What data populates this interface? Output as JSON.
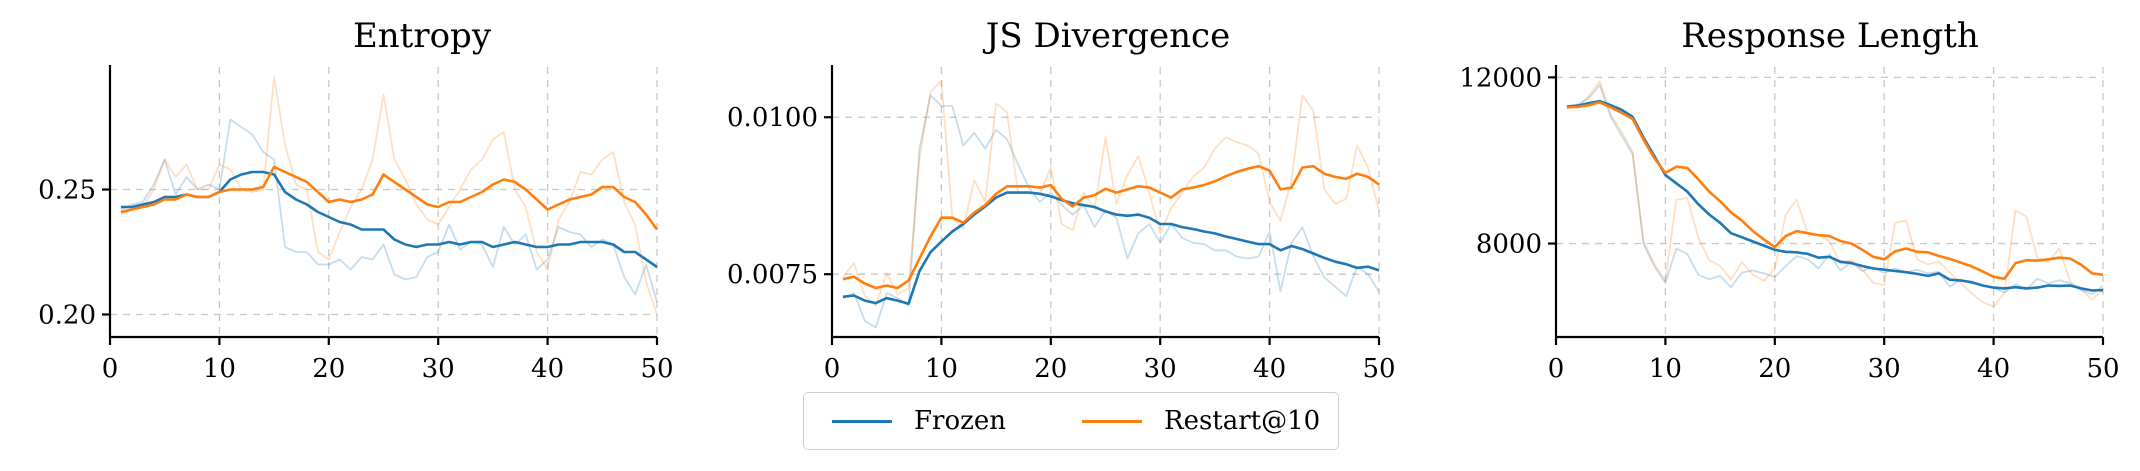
{
  "colors": {
    "frozen": "#1f77b4",
    "restart": "#ff7f0e"
  },
  "legend": [
    {
      "name": "Frozen",
      "color": "#1f77b4"
    },
    {
      "name": "Restart@10",
      "color": "#ff7f0e"
    }
  ],
  "chart_data": [
    {
      "type": "line",
      "title": "Entropy",
      "xlabel": "",
      "ylabel": "",
      "xlim": [
        0,
        50
      ],
      "ylim": [
        0.191,
        0.299
      ],
      "xticks": [
        0,
        10,
        20,
        30,
        40,
        50
      ],
      "yticks": [
        0.2,
        0.25
      ],
      "ytick_labels": [
        "0.20",
        "0.25"
      ],
      "grid": true,
      "x": [
        1,
        2,
        3,
        4,
        5,
        6,
        7,
        8,
        9,
        10,
        11,
        12,
        13,
        14,
        15,
        16,
        17,
        18,
        19,
        20,
        21,
        22,
        23,
        24,
        25,
        26,
        27,
        28,
        29,
        30,
        31,
        32,
        33,
        34,
        35,
        36,
        37,
        38,
        39,
        40,
        41,
        42,
        43,
        44,
        45,
        46,
        47,
        48,
        49,
        50
      ],
      "series": [
        {
          "name": "Frozen",
          "style": "smoothed",
          "color": "#1f77b4",
          "values": [
            0.243,
            0.243,
            0.244,
            0.245,
            0.247,
            0.247,
            0.248,
            0.247,
            0.247,
            0.249,
            0.254,
            0.256,
            0.257,
            0.257,
            0.256,
            0.249,
            0.246,
            0.244,
            0.241,
            0.239,
            0.237,
            0.236,
            0.234,
            0.234,
            0.234,
            0.23,
            0.228,
            0.227,
            0.228,
            0.228,
            0.229,
            0.228,
            0.229,
            0.229,
            0.227,
            0.228,
            0.229,
            0.228,
            0.227,
            0.227,
            0.228,
            0.228,
            0.229,
            0.229,
            0.229,
            0.228,
            0.225,
            0.225,
            0.222,
            0.219
          ]
        },
        {
          "name": "Restart@10",
          "style": "smoothed",
          "color": "#ff7f0e",
          "values": [
            0.241,
            0.242,
            0.243,
            0.244,
            0.246,
            0.246,
            0.248,
            0.247,
            0.247,
            0.249,
            0.25,
            0.25,
            0.25,
            0.251,
            0.259,
            0.257,
            0.255,
            0.253,
            0.249,
            0.245,
            0.246,
            0.245,
            0.246,
            0.248,
            0.256,
            0.253,
            0.25,
            0.247,
            0.244,
            0.243,
            0.245,
            0.245,
            0.247,
            0.249,
            0.252,
            0.254,
            0.253,
            0.25,
            0.246,
            0.242,
            0.244,
            0.246,
            0.247,
            0.248,
            0.251,
            0.251,
            0.247,
            0.245,
            0.24,
            0.234
          ]
        },
        {
          "name": "Frozen",
          "style": "raw",
          "color": "#1f77b4",
          "values": [
            0.242,
            0.244,
            0.245,
            0.252,
            0.262,
            0.248,
            0.255,
            0.25,
            0.252,
            0.25,
            0.278,
            0.275,
            0.272,
            0.265,
            0.262,
            0.227,
            0.225,
            0.225,
            0.22,
            0.22,
            0.222,
            0.218,
            0.223,
            0.222,
            0.228,
            0.216,
            0.214,
            0.215,
            0.223,
            0.225,
            0.236,
            0.226,
            0.229,
            0.228,
            0.219,
            0.235,
            0.228,
            0.232,
            0.218,
            0.222,
            0.235,
            0.233,
            0.232,
            0.227,
            0.23,
            0.228,
            0.215,
            0.208,
            0.22,
            0.205
          ]
        },
        {
          "name": "Restart@10",
          "style": "raw",
          "color": "#ff7f0e",
          "values": [
            0.24,
            0.242,
            0.243,
            0.25,
            0.262,
            0.255,
            0.26,
            0.25,
            0.25,
            0.26,
            0.258,
            0.25,
            0.249,
            0.25,
            0.295,
            0.268,
            0.252,
            0.25,
            0.225,
            0.222,
            0.233,
            0.243,
            0.25,
            0.262,
            0.288,
            0.262,
            0.254,
            0.244,
            0.238,
            0.236,
            0.243,
            0.25,
            0.258,
            0.262,
            0.27,
            0.273,
            0.25,
            0.243,
            0.225,
            0.218,
            0.238,
            0.245,
            0.257,
            0.256,
            0.262,
            0.265,
            0.245,
            0.236,
            0.213,
            0.2
          ]
        }
      ]
    },
    {
      "type": "line",
      "title": "JS Divergence",
      "xlabel": "",
      "ylabel": "",
      "xlim": [
        0,
        50
      ],
      "ylim": [
        0.0065,
        0.0108
      ],
      "xticks": [
        0,
        10,
        20,
        30,
        40,
        50
      ],
      "yticks": [
        0.0075,
        0.01
      ],
      "ytick_labels": [
        "0.0075",
        "0.0100"
      ],
      "grid": true,
      "x": [
        1,
        2,
        3,
        4,
        5,
        6,
        7,
        8,
        9,
        10,
        11,
        12,
        13,
        14,
        15,
        16,
        17,
        18,
        19,
        20,
        21,
        22,
        23,
        24,
        25,
        26,
        27,
        28,
        29,
        30,
        31,
        32,
        33,
        34,
        35,
        36,
        37,
        38,
        39,
        40,
        41,
        42,
        43,
        44,
        45,
        46,
        47,
        48,
        49,
        50
      ],
      "series": [
        {
          "name": "Frozen",
          "style": "smoothed",
          "color": "#1f77b4",
          "values": [
            0.00714,
            0.00716,
            0.00708,
            0.00704,
            0.00712,
            0.00708,
            0.00703,
            0.00755,
            0.00785,
            0.00802,
            0.00818,
            0.0083,
            0.00845,
            0.00858,
            0.00872,
            0.0088,
            0.0088,
            0.0088,
            0.00878,
            0.00874,
            0.00868,
            0.00863,
            0.0086,
            0.00857,
            0.0085,
            0.00845,
            0.00843,
            0.00845,
            0.0084,
            0.0083,
            0.0083,
            0.00825,
            0.00822,
            0.00818,
            0.00815,
            0.0081,
            0.00806,
            0.00802,
            0.00798,
            0.00798,
            0.00788,
            0.00795,
            0.0079,
            0.00783,
            0.00776,
            0.0077,
            0.00766,
            0.0076,
            0.00762,
            0.00756
          ]
        },
        {
          "name": "Restart@10",
          "style": "smoothed",
          "color": "#ff7f0e",
          "values": [
            0.00742,
            0.00746,
            0.00735,
            0.00728,
            0.00732,
            0.00728,
            0.0074,
            0.00775,
            0.0081,
            0.0084,
            0.0084,
            0.00832,
            0.00848,
            0.0086,
            0.00878,
            0.0089,
            0.0089,
            0.0089,
            0.00888,
            0.00892,
            0.0087,
            0.00858,
            0.00872,
            0.00876,
            0.00886,
            0.0088,
            0.00885,
            0.0089,
            0.00888,
            0.0088,
            0.00872,
            0.00885,
            0.00888,
            0.00892,
            0.00898,
            0.00906,
            0.00913,
            0.00918,
            0.00922,
            0.00915,
            0.00885,
            0.00888,
            0.0092,
            0.00922,
            0.0091,
            0.00905,
            0.00902,
            0.0091,
            0.00905,
            0.00893
          ]
        },
        {
          "name": "Frozen",
          "style": "raw",
          "color": "#1f77b4",
          "values": [
            0.00712,
            0.0072,
            0.00676,
            0.00665,
            0.0072,
            0.00712,
            0.007,
            0.0095,
            0.01035,
            0.01018,
            0.01018,
            0.00955,
            0.00975,
            0.0095,
            0.0098,
            0.00965,
            0.00925,
            0.00888,
            0.00865,
            0.0088,
            0.0086,
            0.00845,
            0.0086,
            0.00825,
            0.00852,
            0.0084,
            0.00775,
            0.00815,
            0.0083,
            0.008,
            0.0083,
            0.00808,
            0.008,
            0.00798,
            0.00788,
            0.00788,
            0.00778,
            0.00775,
            0.00778,
            0.00818,
            0.00723,
            0.008,
            0.00825,
            0.00778,
            0.00745,
            0.0073,
            0.00715,
            0.00762,
            0.0075,
            0.00722
          ]
        },
        {
          "name": "Restart@10",
          "style": "raw",
          "color": "#ff7f0e",
          "values": [
            0.00745,
            0.00768,
            0.00715,
            0.007,
            0.00752,
            0.00718,
            0.00728,
            0.00935,
            0.0104,
            0.01058,
            0.0084,
            0.00822,
            0.009,
            0.00865,
            0.01022,
            0.01008,
            0.0088,
            0.0088,
            0.00878,
            0.0092,
            0.0083,
            0.0082,
            0.0088,
            0.00855,
            0.00968,
            0.00862,
            0.00908,
            0.00938,
            0.0088,
            0.00815,
            0.00855,
            0.0088,
            0.00905,
            0.0092,
            0.0095,
            0.00968,
            0.0096,
            0.00955,
            0.00942,
            0.00865,
            0.00835,
            0.009,
            0.01035,
            0.0101,
            0.00885,
            0.00862,
            0.0087,
            0.00955,
            0.0092,
            0.0085
          ]
        }
      ]
    },
    {
      "type": "line",
      "title": "Response Length",
      "xlabel": "",
      "ylabel": "",
      "xlim": [
        0,
        50
      ],
      "ylim": [
        5750,
        12250
      ],
      "xticks": [
        0,
        10,
        20,
        30,
        40,
        50
      ],
      "yticks": [
        8000,
        12000
      ],
      "ytick_labels": [
        "8000",
        "12000"
      ],
      "grid": true,
      "x": [
        1,
        2,
        3,
        4,
        5,
        6,
        7,
        8,
        9,
        10,
        11,
        12,
        13,
        14,
        15,
        16,
        17,
        18,
        19,
        20,
        21,
        22,
        23,
        24,
        25,
        26,
        27,
        28,
        29,
        30,
        31,
        32,
        33,
        34,
        35,
        36,
        37,
        38,
        39,
        40,
        41,
        42,
        43,
        44,
        45,
        46,
        47,
        48,
        49,
        50
      ],
      "series": [
        {
          "name": "Frozen",
          "style": "smoothed",
          "color": "#1f77b4",
          "values": [
            11300,
            11320,
            11380,
            11430,
            11330,
            11220,
            11050,
            10550,
            10100,
            9650,
            9450,
            9250,
            8950,
            8700,
            8500,
            8250,
            8150,
            8050,
            7950,
            7850,
            7800,
            7790,
            7750,
            7660,
            7680,
            7560,
            7530,
            7460,
            7400,
            7370,
            7340,
            7310,
            7270,
            7220,
            7280,
            7130,
            7110,
            7070,
            6990,
            6940,
            6920,
            6950,
            6920,
            6940,
            6990,
            6980,
            6990,
            6920,
            6870,
            6880
          ]
        },
        {
          "name": "Restart@10",
          "style": "smoothed",
          "color": "#ff7f0e",
          "values": [
            11280,
            11290,
            11330,
            11400,
            11280,
            11150,
            11000,
            10500,
            10050,
            9700,
            9850,
            9820,
            9550,
            9250,
            9020,
            8750,
            8550,
            8300,
            8100,
            7920,
            8180,
            8300,
            8250,
            8200,
            8180,
            8060,
            8000,
            7850,
            7680,
            7620,
            7810,
            7880,
            7800,
            7790,
            7700,
            7630,
            7540,
            7450,
            7330,
            7200,
            7150,
            7530,
            7600,
            7590,
            7620,
            7660,
            7640,
            7490,
            7280,
            7250
          ]
        },
        {
          "name": "Frozen",
          "style": "raw",
          "color": "#1f77b4",
          "values": [
            11280,
            11350,
            11500,
            11820,
            11050,
            10600,
            10150,
            8000,
            7450,
            7050,
            7880,
            7750,
            7250,
            7140,
            7220,
            6950,
            7300,
            7350,
            7280,
            7200,
            7460,
            7700,
            7620,
            7400,
            7740,
            7350,
            7560,
            7340,
            7430,
            7290,
            7400,
            7310,
            7370,
            7280,
            7320,
            6960,
            7140,
            7040,
            7000,
            6940,
            6820,
            7020,
            6900,
            7150,
            7040,
            7120,
            7040,
            6880,
            6780,
            6980
          ]
        },
        {
          "name": "Restart@10",
          "style": "raw",
          "color": "#ff7f0e",
          "values": [
            11260,
            11300,
            11550,
            11900,
            11100,
            10700,
            10200,
            8050,
            7500,
            7100,
            9050,
            9100,
            8150,
            7600,
            7460,
            7130,
            7550,
            7250,
            7100,
            7400,
            8700,
            9060,
            8250,
            8200,
            8050,
            7530,
            7600,
            7380,
            7050,
            7000,
            8500,
            8550,
            7620,
            7500,
            7560,
            7300,
            7050,
            6800,
            6590,
            6480,
            6820,
            8800,
            8650,
            7650,
            7550,
            7880,
            7080,
            6900,
            6650,
            6880
          ]
        }
      ]
    }
  ]
}
